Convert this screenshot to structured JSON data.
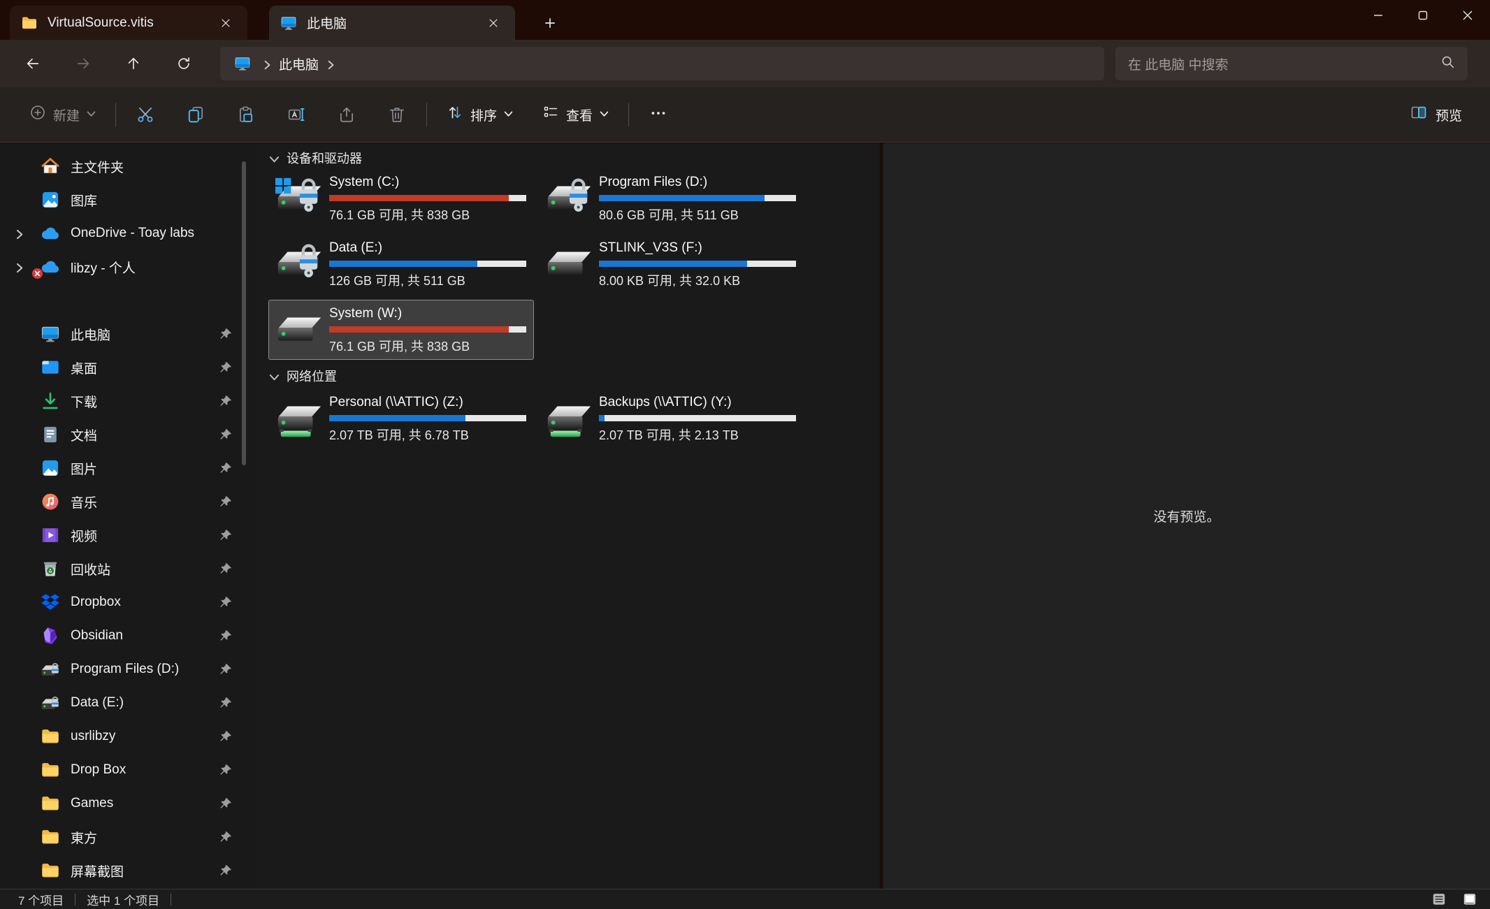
{
  "window": {
    "controls": [
      {
        "name": "minimize-button",
        "icon": "minimize-icon"
      },
      {
        "name": "maximize-button",
        "icon": "maximize-icon"
      },
      {
        "name": "close-button",
        "icon": "close-icon"
      }
    ]
  },
  "tabs": [
    {
      "title": "VirtualSource.vitis",
      "icon": "folder-icon",
      "active": false
    },
    {
      "title": "此电脑",
      "icon": "monitor-icon",
      "active": true
    }
  ],
  "address": {
    "breadcrumb_root_icon": "monitor-icon",
    "breadcrumb": "此电脑",
    "search_placeholder": "在 此电脑 中搜索"
  },
  "toolbar": {
    "new_label": "新建",
    "sort_label": "排序",
    "view_label": "查看",
    "preview_label": "预览",
    "icon_buttons": [
      "cut-icon",
      "copy-icon",
      "paste-icon",
      "rename-icon",
      "share-icon",
      "delete-icon"
    ]
  },
  "sidebar": {
    "groups": [
      {
        "items": [
          {
            "label": "主文件夹",
            "icon": "home-icon"
          },
          {
            "label": "图库",
            "icon": "gallery-icon"
          },
          {
            "label": "OneDrive - Toay labs",
            "icon": "onedrive-icon",
            "chevron": true
          },
          {
            "label": "libzy - 个人",
            "icon": "onedrive-icon",
            "chevron": true,
            "badge": "error-badge"
          }
        ]
      },
      {
        "items": [
          {
            "label": "此电脑",
            "icon": "monitor-icon",
            "pinned": true
          },
          {
            "label": "桌面",
            "icon": "desktop-icon",
            "pinned": true
          },
          {
            "label": "下载",
            "icon": "downloads-icon",
            "pinned": true
          },
          {
            "label": "文档",
            "icon": "documents-icon",
            "pinned": true
          },
          {
            "label": "图片",
            "icon": "pictures-icon",
            "pinned": true
          },
          {
            "label": "音乐",
            "icon": "music-icon",
            "pinned": true
          },
          {
            "label": "视频",
            "icon": "videos-icon",
            "pinned": true
          },
          {
            "label": "回收站",
            "icon": "recycle-bin-icon",
            "pinned": true
          },
          {
            "label": "Dropbox",
            "icon": "dropbox-icon",
            "pinned": true
          },
          {
            "label": "Obsidian",
            "icon": "obsidian-icon",
            "pinned": true
          },
          {
            "label": "Program Files (D:)",
            "icon": "drive-lock-small-icon",
            "pinned": true
          },
          {
            "label": "Data (E:)",
            "icon": "drive-lock-small-icon",
            "pinned": true
          },
          {
            "label": "usrlibzy",
            "icon": "folder-icon",
            "pinned": true
          },
          {
            "label": "Drop Box",
            "icon": "folder-icon",
            "pinned": true
          },
          {
            "label": "Games",
            "icon": "folder-icon",
            "pinned": true
          },
          {
            "label": "東方",
            "icon": "folder-icon",
            "pinned": true
          },
          {
            "label": "屏幕截图",
            "icon": "folder-icon",
            "pinned": true
          }
        ]
      }
    ]
  },
  "main": {
    "sections": [
      {
        "title": "设备和驱动器",
        "items": [
          {
            "name": "System (C:)",
            "capacity": "76.1 GB 可用, 共 838 GB",
            "percent": 91,
            "bar_color": "#c23a28",
            "icon": "drive-windows-lock-icon"
          },
          {
            "name": "Program Files (D:)",
            "capacity": "80.6 GB 可用, 共 511 GB",
            "percent": 84,
            "bar_color": "#1877d2",
            "icon": "drive-lock-icon"
          },
          {
            "name": "Data (E:)",
            "capacity": "126 GB 可用, 共 511 GB",
            "percent": 75,
            "bar_color": "#1877d2",
            "icon": "drive-lock-icon"
          },
          {
            "name": "STLINK_V3S (F:)",
            "capacity": "8.00 KB 可用, 共 32.0 KB",
            "percent": 75,
            "bar_color": "#1877d2",
            "icon": "drive-icon"
          },
          {
            "name": "System (W:)",
            "capacity": "76.1 GB 可用, 共 838 GB",
            "percent": 91,
            "bar_color": "#c23a28",
            "icon": "drive-icon",
            "selected": true
          }
        ]
      },
      {
        "title": "网络位置",
        "items": [
          {
            "name": "Personal (\\\\ATTIC) (Z:)",
            "capacity": "2.07 TB 可用, 共 6.78 TB",
            "percent": 69,
            "bar_color": "#1877d2",
            "icon": "network-drive-icon"
          },
          {
            "name": "Backups (\\\\ATTIC) (Y:)",
            "capacity": "2.07 TB 可用, 共 2.13 TB",
            "percent": 3,
            "bar_color": "#1877d2",
            "icon": "network-drive-icon"
          }
        ]
      }
    ]
  },
  "preview": {
    "message": "没有预览。"
  },
  "statusbar": {
    "items_count": "7 个项目",
    "selected_count": "选中 1 个项目",
    "views": [
      "details-view-icon",
      "large-icons-view-icon"
    ]
  },
  "colors": {
    "accent_blue": "#1877d2",
    "warning_red": "#c23a28",
    "selection_bg": "#3e3e3e",
    "titlebar_bg": "#1e0b05",
    "chrome_bg": "#2f2724",
    "toolbar_bg": "#262220",
    "pane_bg": "#1a1a1a",
    "preview_bg": "#222223"
  }
}
